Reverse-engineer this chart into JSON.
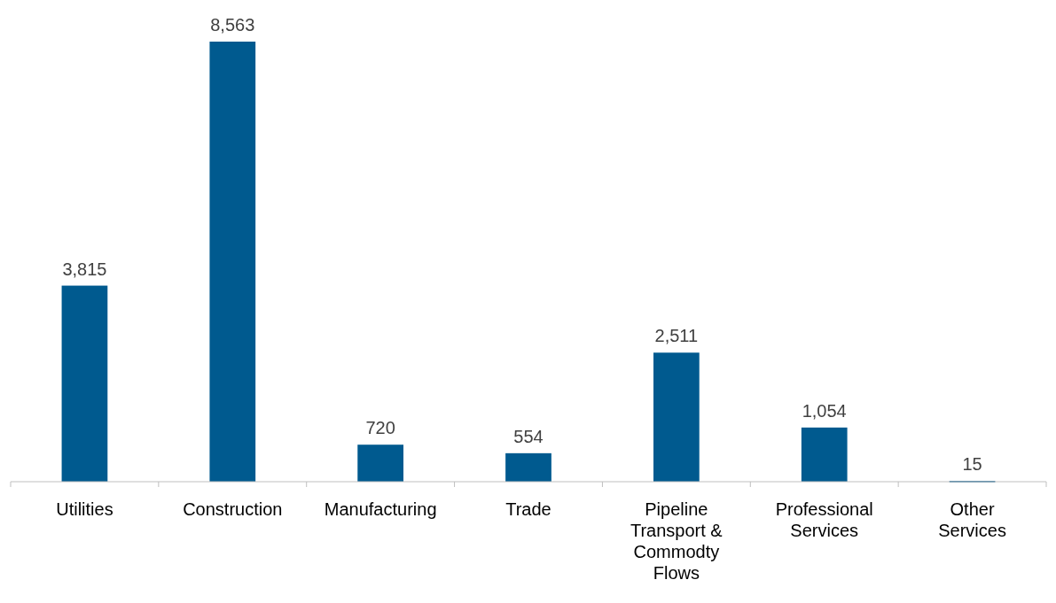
{
  "chart_data": {
    "type": "bar",
    "categories": [
      "Utilities",
      "Construction",
      "Manufacturing",
      "Trade",
      "Pipeline Transport & Commodty Flows",
      "Professional Services",
      "Other Services"
    ],
    "values": [
      3815,
      8563,
      720,
      554,
      2511,
      1054,
      15
    ],
    "value_labels": [
      "3,815",
      "8,563",
      "720",
      "554",
      "2,511",
      "1,054",
      "15"
    ],
    "color": "#005a8f"
  }
}
